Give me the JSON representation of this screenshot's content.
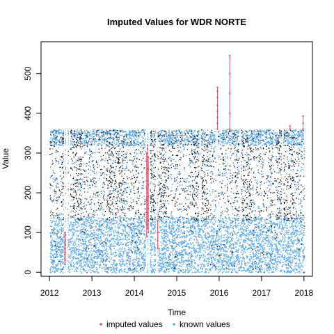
{
  "chart_data": {
    "type": "scatter",
    "title": "Imputed Values for  WDR NORTE",
    "xlabel": "Time",
    "ylabel": "Value",
    "xlim": [
      2011.8,
      2018.2
    ],
    "ylim": [
      -10,
      580
    ],
    "x_ticks": [
      "2012",
      "2013",
      "2014",
      "2015",
      "2016",
      "2017",
      "2018"
    ],
    "y_ticks": [
      "0",
      "100",
      "200",
      "300",
      "400",
      "500"
    ],
    "colors": {
      "imputed": "#df536b",
      "known": "#5ba7ea",
      "black": "#000000"
    },
    "legend": {
      "placement": "bottom",
      "entries": [
        {
          "label": "imputed values",
          "color": "#df536b"
        },
        {
          "label": "known values",
          "color": "#5ba7ea"
        }
      ]
    },
    "gaps": [
      {
        "x": 2012.36,
        "from": 0,
        "to": 360
      },
      {
        "x": 2012.41,
        "from": 0,
        "to": 360
      },
      {
        "x": 2012.47,
        "from": 120,
        "to": 360
      },
      {
        "x": 2014.29,
        "from": 0,
        "to": 360
      },
      {
        "x": 2014.35,
        "from": 0,
        "to": 360
      },
      {
        "x": 2014.53,
        "from": 0,
        "to": 360
      },
      {
        "x": 2015.55,
        "from": 120,
        "to": 360
      },
      {
        "x": 2015.95,
        "from": 120,
        "to": 360
      },
      {
        "x": 2016.5,
        "from": 120,
        "to": 360
      },
      {
        "x": 2017.5,
        "from": 120,
        "to": 360
      }
    ],
    "imputed_series": [
      {
        "x": 2012.36,
        "values": [
          20,
          35,
          45,
          60,
          75,
          90,
          100
        ]
      },
      {
        "x": 2012.37,
        "values": [
          30,
          50,
          70,
          95
        ]
      },
      {
        "x": 2014.29,
        "values": [
          90,
          120,
          150,
          180,
          210,
          250,
          280,
          300
        ]
      },
      {
        "x": 2014.31,
        "values": [
          110,
          140,
          170,
          200,
          230,
          260,
          290,
          310,
          320
        ]
      },
      {
        "x": 2014.33,
        "values": [
          100,
          130,
          160,
          190,
          220,
          260,
          290
        ]
      },
      {
        "x": 2014.55,
        "values": [
          60,
          80,
          100,
          130
        ]
      },
      {
        "x": 2015.96,
        "values": [
          360,
          375,
          390,
          405,
          420,
          440,
          455,
          465
        ]
      },
      {
        "x": 2016.25,
        "values": [
          360,
          400,
          450,
          500,
          545
        ]
      },
      {
        "x": 2017.67,
        "values": [
          360,
          368
        ]
      },
      {
        "x": 2017.98,
        "values": [
          360,
          375,
          393
        ]
      }
    ],
    "dense_bands": [
      {
        "from": 2012.3,
        "to": 2012.75
      },
      {
        "from": 2013.35,
        "to": 2013.75
      },
      {
        "from": 2014.35,
        "to": 2014.75
      },
      {
        "from": 2015.35,
        "to": 2015.75
      },
      {
        "from": 2016.35,
        "to": 2016.75
      },
      {
        "from": 2017.35,
        "to": 2017.75
      }
    ]
  }
}
